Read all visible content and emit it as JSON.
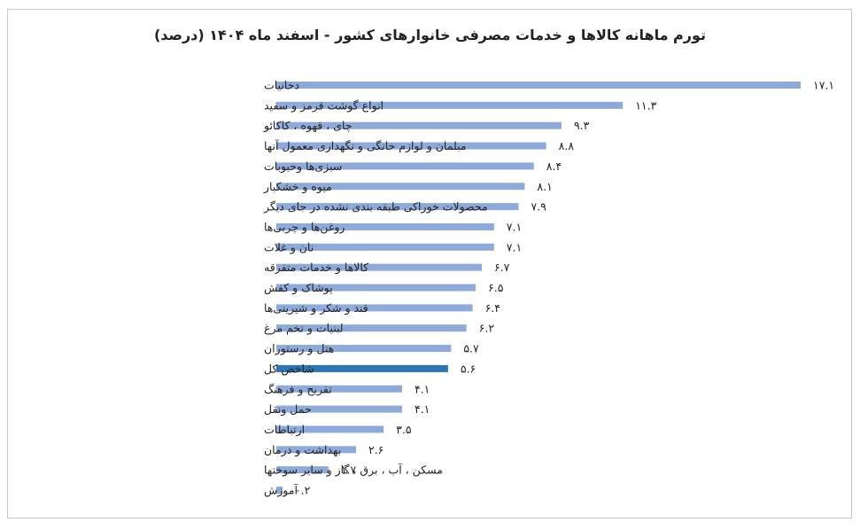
{
  "chart_data": {
    "type": "bar",
    "orientation": "horizontal",
    "title": "تورم ماهانه کالاها و خدمات مصرفی خانوارهای کشور - اسفند ماه ۱۴۰۴ (درصد)",
    "categories": [
      "دخانیات",
      "انواع گوشت قرمز و سفید",
      "چای ، قهوه ، کاکائو",
      "مبلمان و لوازم خانگی و نگهداری معمول آنها",
      "سبزی‌ها وحبوبات",
      "میوه و خشکبار",
      "محصولات خوراکی طبقه بندی نشده در جای دیگر",
      "روغن‌ها و چربی‌ها",
      "نان و غلات",
      "کالاها و خدمات متفرقه",
      "پوشاک و کفش",
      "قند و شکر و شیرینی‌ها",
      "لبنیات و تخم مرغ",
      "هتل و رستوران",
      "شاخص کل",
      "تفریح و فرهنگ",
      "حمل ونقل",
      "ارتباطات",
      "بهداشت و درمان",
      "مسکن ، آب ، برق ، گاز و سایر سوختها",
      "آموزش"
    ],
    "values": [
      17.1,
      11.3,
      9.3,
      8.8,
      8.4,
      8.1,
      7.9,
      7.1,
      7.1,
      6.7,
      6.5,
      6.4,
      6.2,
      5.7,
      5.6,
      4.1,
      4.1,
      3.5,
      2.6,
      1.7,
      0.2
    ],
    "value_labels": [
      "۱۷.۱",
      "۱۱.۳",
      "۹.۳",
      "۸.۸",
      "۸.۴",
      "۸.۱",
      "۷.۹",
      "۷.۱",
      "۷.۱",
      "۶.۷",
      "۶.۵",
      "۶.۴",
      "۶.۲",
      "۵.۷",
      "۵.۶",
      "۴.۱",
      "۴.۱",
      "۳.۵",
      "۲.۶",
      "۱.۷",
      "۰.۲"
    ],
    "highlight_index": 14,
    "colors": {
      "bar": "#8eaadb",
      "highlight": "#2e75b6"
    },
    "xlim": [
      0,
      17.1
    ],
    "grid": false,
    "legend": "none"
  }
}
